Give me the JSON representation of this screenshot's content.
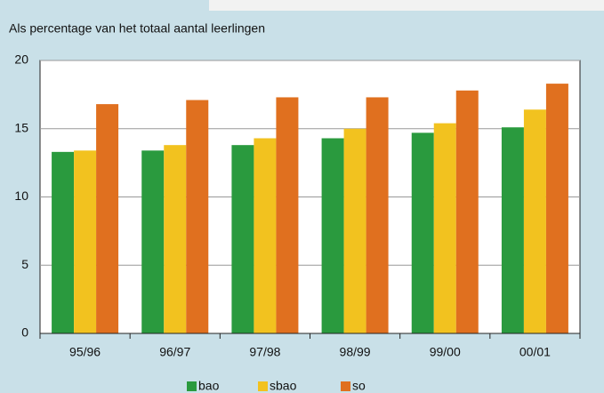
{
  "chart_data": {
    "type": "bar",
    "subtitle": "Als percentage van het totaal aantal leerlingen",
    "categories": [
      "95/96",
      "96/97",
      "97/98",
      "98/99",
      "99/00",
      "00/01"
    ],
    "series": [
      {
        "name": "bao",
        "color": "#2a9a3e",
        "values": [
          13.3,
          13.4,
          13.8,
          14.3,
          14.7,
          15.1
        ]
      },
      {
        "name": "sbao",
        "color": "#f2c21f",
        "values": [
          13.4,
          13.8,
          14.3,
          15.0,
          15.4,
          16.4
        ]
      },
      {
        "name": "so",
        "color": "#e0701f",
        "values": [
          16.8,
          17.1,
          17.3,
          17.3,
          17.8,
          18.3
        ]
      }
    ],
    "ylim": [
      0,
      20
    ],
    "yticks": [
      0,
      5,
      10,
      15,
      20
    ],
    "grid": true
  }
}
